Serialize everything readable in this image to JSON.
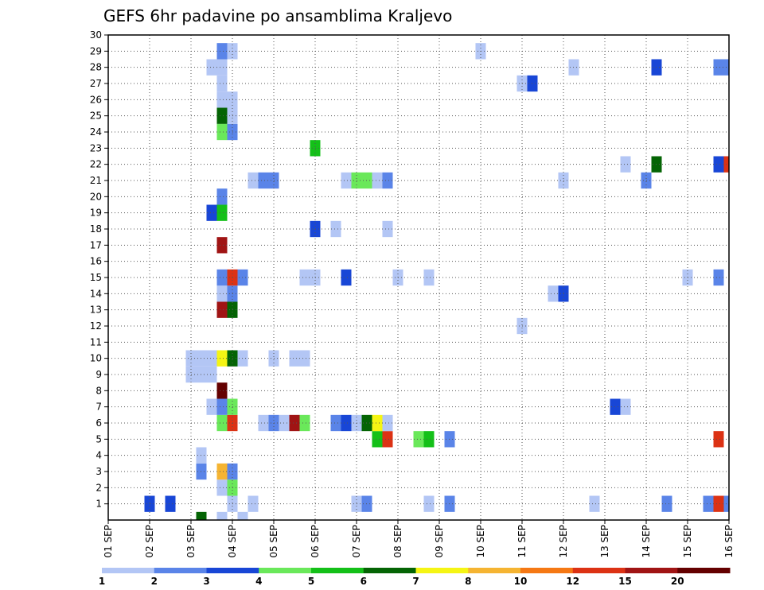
{
  "chart_data": {
    "type": "heatmap",
    "title": "GEFS 6hr padavine po ansamblima Kraljevo",
    "xlabel": "",
    "ylabel": "",
    "y_ticks": [
      1,
      2,
      3,
      4,
      5,
      6,
      7,
      8,
      9,
      10,
      11,
      12,
      13,
      14,
      15,
      16,
      17,
      18,
      19,
      20,
      21,
      22,
      23,
      24,
      25,
      26,
      27,
      28,
      29,
      30
    ],
    "x_ticks": [
      "01 SEP",
      "02 SEP",
      "03 SEP",
      "04 SEP",
      "05 SEP",
      "06 SEP",
      "07 SEP",
      "08 SEP",
      "09 SEP",
      "10 SEP",
      "11 SEP",
      "12 SEP",
      "13 SEP",
      "14 SEP",
      "15 SEP",
      "16 SEP"
    ],
    "xlim": [
      0,
      60
    ],
    "ylim": [
      0,
      30
    ],
    "grid": true,
    "colorbar": {
      "ticks": [
        "1",
        "2",
        "3",
        "4",
        "5",
        "6",
        "7",
        "8",
        "10",
        "12",
        "15",
        "20"
      ],
      "colors": [
        "#b3c6f5",
        "#5a84e8",
        "#1846d6",
        "#6ae85a",
        "#14c018",
        "#046404",
        "#f5f514",
        "#f5b432",
        "#f57814",
        "#dc3214",
        "#a01414",
        "#640000"
      ]
    },
    "cells": [
      [
        0,
        9,
        6
      ],
      [
        0,
        11,
        1
      ],
      [
        0,
        13,
        1
      ],
      [
        1,
        4,
        3
      ],
      [
        1,
        6,
        3
      ],
      [
        1,
        12,
        1
      ],
      [
        1,
        14,
        1
      ],
      [
        1,
        24,
        1
      ],
      [
        1,
        25,
        2
      ],
      [
        1,
        31,
        1
      ],
      [
        1,
        33,
        2
      ],
      [
        1,
        47,
        1
      ],
      [
        1,
        54,
        2
      ],
      [
        1,
        58,
        2
      ],
      [
        1,
        59,
        10
      ],
      [
        1,
        60,
        2
      ],
      [
        2,
        11,
        1
      ],
      [
        2,
        12,
        4
      ],
      [
        3,
        9,
        2
      ],
      [
        3,
        11,
        8
      ],
      [
        3,
        12,
        2
      ],
      [
        4,
        9,
        1
      ],
      [
        5,
        26,
        5
      ],
      [
        5,
        27,
        10
      ],
      [
        5,
        30,
        4
      ],
      [
        5,
        31,
        5
      ],
      [
        5,
        33,
        2
      ],
      [
        5,
        59,
        10
      ],
      [
        6,
        11,
        4
      ],
      [
        6,
        12,
        10
      ],
      [
        6,
        15,
        1
      ],
      [
        6,
        16,
        2
      ],
      [
        6,
        17,
        1
      ],
      [
        6,
        18,
        11
      ],
      [
        6,
        19,
        4
      ],
      [
        6,
        22,
        2
      ],
      [
        6,
        23,
        3
      ],
      [
        6,
        24,
        1
      ],
      [
        6,
        25,
        6
      ],
      [
        6,
        26,
        7
      ],
      [
        6,
        27,
        1
      ],
      [
        7,
        10,
        1
      ],
      [
        7,
        11,
        2
      ],
      [
        7,
        12,
        4
      ],
      [
        7,
        49,
        3
      ],
      [
        7,
        50,
        1
      ],
      [
        8,
        11,
        12
      ],
      [
        9,
        8,
        1
      ],
      [
        9,
        9,
        1
      ],
      [
        9,
        10,
        1
      ],
      [
        10,
        8,
        1
      ],
      [
        10,
        9,
        1
      ],
      [
        10,
        10,
        1
      ],
      [
        10,
        11,
        7
      ],
      [
        10,
        12,
        6
      ],
      [
        10,
        13,
        1
      ],
      [
        10,
        16,
        1
      ],
      [
        10,
        18,
        1
      ],
      [
        10,
        19,
        1
      ],
      [
        12,
        40,
        1
      ],
      [
        13,
        11,
        11
      ],
      [
        13,
        12,
        6
      ],
      [
        14,
        11,
        1
      ],
      [
        14,
        12,
        2
      ],
      [
        14,
        43,
        1
      ],
      [
        14,
        44,
        3
      ],
      [
        15,
        11,
        2
      ],
      [
        15,
        12,
        10
      ],
      [
        15,
        13,
        2
      ],
      [
        15,
        19,
        1
      ],
      [
        15,
        20,
        1
      ],
      [
        15,
        23,
        3
      ],
      [
        15,
        28,
        1
      ],
      [
        15,
        31,
        1
      ],
      [
        15,
        56,
        1
      ],
      [
        15,
        59,
        2
      ],
      [
        17,
        11,
        11
      ],
      [
        18,
        20,
        3
      ],
      [
        18,
        22,
        1
      ],
      [
        18,
        27,
        1
      ],
      [
        19,
        10,
        3
      ],
      [
        19,
        11,
        5
      ],
      [
        20,
        11,
        2
      ],
      [
        21,
        14,
        1
      ],
      [
        21,
        15,
        2
      ],
      [
        21,
        16,
        2
      ],
      [
        21,
        23,
        1
      ],
      [
        21,
        24,
        4
      ],
      [
        21,
        25,
        4
      ],
      [
        21,
        26,
        1
      ],
      [
        21,
        27,
        2
      ],
      [
        21,
        44,
        1
      ],
      [
        21,
        52,
        2
      ],
      [
        22,
        50,
        1
      ],
      [
        22,
        53,
        6
      ],
      [
        22,
        59,
        3
      ],
      [
        22,
        60,
        10
      ],
      [
        23,
        20,
        5
      ],
      [
        24,
        11,
        4
      ],
      [
        24,
        12,
        2
      ],
      [
        25,
        11,
        6
      ],
      [
        25,
        12,
        1
      ],
      [
        26,
        11,
        1
      ],
      [
        26,
        12,
        1
      ],
      [
        27,
        11,
        1
      ],
      [
        27,
        40,
        1
      ],
      [
        27,
        41,
        3
      ],
      [
        28,
        10,
        1
      ],
      [
        28,
        11,
        1
      ],
      [
        28,
        45,
        1
      ],
      [
        28,
        53,
        3
      ],
      [
        28,
        59,
        2
      ],
      [
        28,
        60,
        2
      ],
      [
        29,
        11,
        2
      ],
      [
        29,
        12,
        1
      ],
      [
        29,
        36,
        1
      ]
    ]
  }
}
